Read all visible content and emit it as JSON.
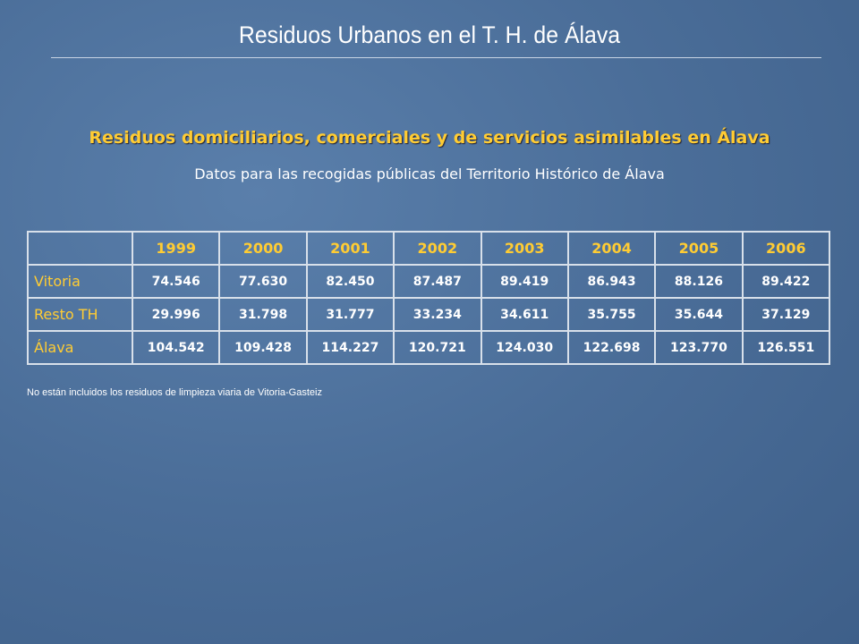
{
  "header": {
    "title": "Residuos Urbanos en el T. H. de Álava"
  },
  "heading": "Residuos domiciliarios, comerciales y de servicios asimilables en Álava",
  "description": "Datos para las recogidas públicas del Territorio Histórico de Álava",
  "table": {
    "headers": [
      "1999",
      "2000",
      "2001",
      "2002",
      "2003",
      "2004",
      "2005",
      "2006"
    ],
    "rows": [
      {
        "label": "Vitoria",
        "values": [
          "74.546",
          "77.630",
          "82.450",
          "87.487",
          "89.419",
          "86.943",
          "88.126",
          "89.422"
        ]
      },
      {
        "label": "Resto TH",
        "values": [
          "29.996",
          "31.798",
          "31.777",
          "33.234",
          "34.611",
          "35.755",
          "35.644",
          "37.129"
        ]
      },
      {
        "label": "Álava",
        "values": [
          "104.542",
          "109.428",
          "114.227",
          "120.721",
          "124.030",
          "122.698",
          "123.770",
          "126.551"
        ]
      }
    ]
  },
  "footnote": "No están incluidos los residuos de limpieza viaria de Vitoria-Gasteiz"
}
